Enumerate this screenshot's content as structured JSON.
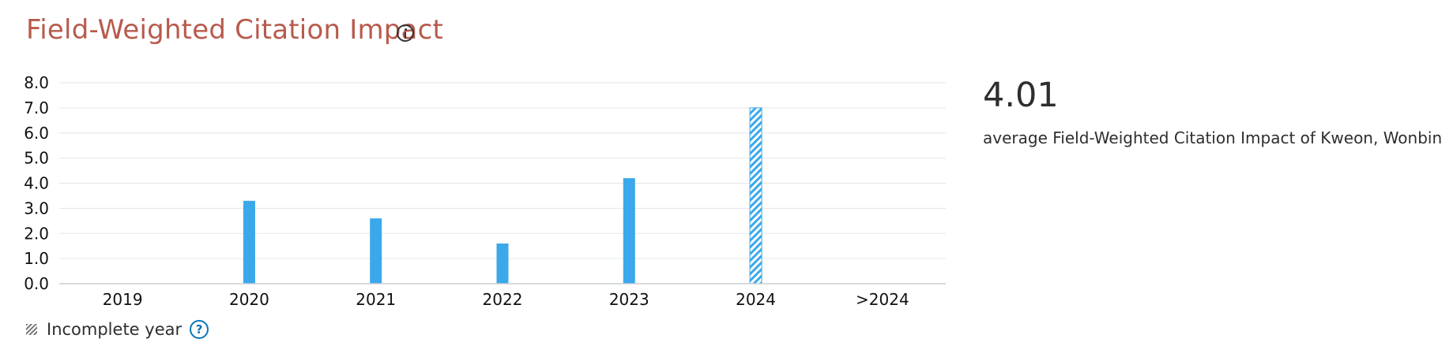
{
  "header": {
    "title": "Field-Weighted Citation Impact"
  },
  "summary": {
    "value": "4.01",
    "caption": "average Field-Weighted Citation Impact of Kweon, Wonbin"
  },
  "legend": {
    "incomplete_label": "Incomplete year",
    "help_glyph": "?"
  },
  "colors": {
    "title": "#b85a4c",
    "bar": "#3aa8ea",
    "grid": "#e3e6ea",
    "axis": "#c9ced4",
    "help": "#0b74b8"
  },
  "chart_data": {
    "type": "bar",
    "title": "Field-Weighted Citation Impact",
    "categories": [
      "2019",
      "2020",
      "2021",
      "2022",
      "2023",
      "2024",
      ">2024"
    ],
    "values": [
      0,
      3.3,
      2.6,
      1.6,
      4.2,
      7.0,
      0
    ],
    "incomplete": [
      false,
      false,
      false,
      false,
      false,
      true,
      false
    ],
    "ylim": [
      0,
      8
    ],
    "yticks": [
      "0.0",
      "1.0",
      "2.0",
      "3.0",
      "4.0",
      "5.0",
      "6.0",
      "7.0",
      "8.0"
    ],
    "xlabel": "",
    "ylabel": "",
    "grid": true,
    "legend": "bottom-left"
  }
}
